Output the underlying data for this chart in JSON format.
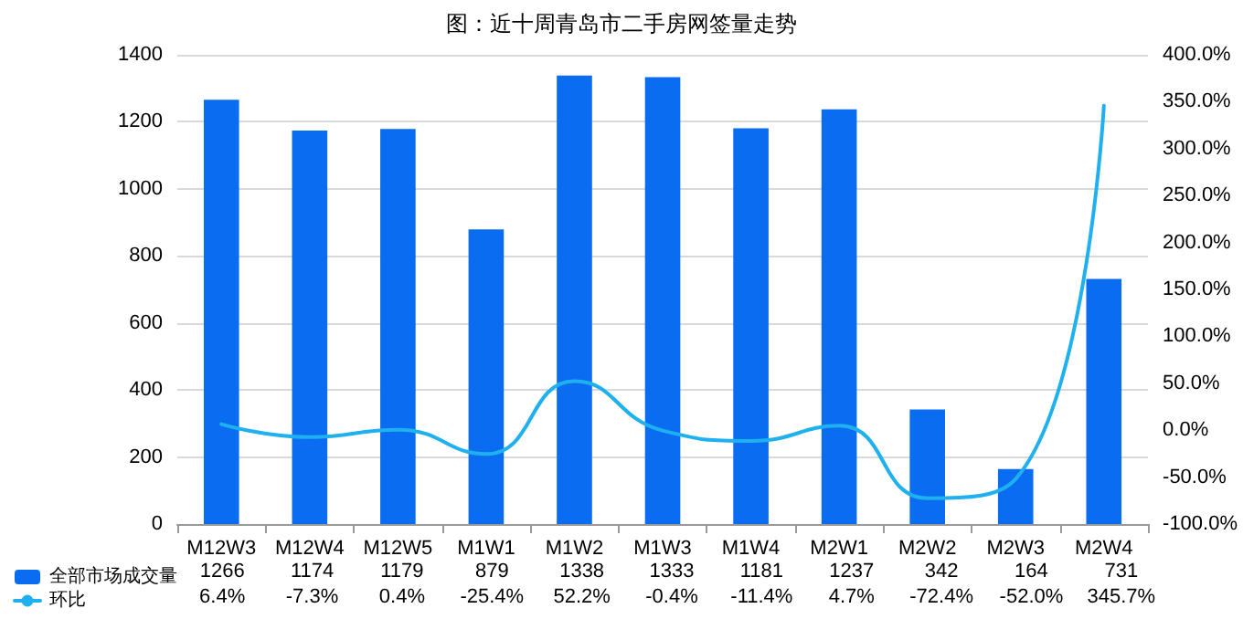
{
  "chart_data": {
    "type": "bar",
    "title": "图：近十周青岛市二手房网签量走势",
    "categories": [
      "M12W3",
      "M12W4",
      "M12W5",
      "M1W1",
      "M1W2",
      "M1W3",
      "M1W4",
      "M2W1",
      "M2W2",
      "M2W3",
      "M2W4"
    ],
    "series": [
      {
        "name": "全部市场成交量",
        "color": "#0a6cf0",
        "values": [
          1266,
          1174,
          1179,
          879,
          1338,
          1333,
          1181,
          1237,
          342,
          164,
          731
        ],
        "value_labels": [
          "1266",
          "1174",
          "1179",
          "879",
          "1338",
          "1333",
          "1181",
          "1237",
          "342",
          "164",
          "731"
        ]
      },
      {
        "name": "环比",
        "type": "line",
        "axis": "y2",
        "color": "#1fb0f0",
        "values": [
          6.4,
          -7.3,
          0.4,
          -25.4,
          52.2,
          -0.4,
          -11.4,
          4.7,
          -72.4,
          -52.0,
          345.7
        ],
        "value_labels": [
          "6.4%",
          "-7.3%",
          "0.4%",
          "-25.4%",
          "52.2%",
          "-0.4%",
          "-11.4%",
          "4.7%",
          "-72.4%",
          "-52.0%",
          "345.7%"
        ]
      }
    ],
    "ylim": [
      0,
      1400
    ],
    "yticks": [
      0,
      200,
      400,
      600,
      800,
      1000,
      1200,
      1400
    ],
    "y2lim": [
      -100,
      400
    ],
    "y2ticks": [
      {
        "value": -100,
        "label": "-100.0%"
      },
      {
        "value": -50,
        "label": "-50.0%"
      },
      {
        "value": 0,
        "label": "0.0%"
      },
      {
        "value": 50,
        "label": "50.0%"
      },
      {
        "value": 100,
        "label": "100.0%"
      },
      {
        "value": 150,
        "label": "150.0%"
      },
      {
        "value": 200,
        "label": "200.0%"
      },
      {
        "value": 250,
        "label": "250.0%"
      },
      {
        "value": 300,
        "label": "300.0%"
      },
      {
        "value": 350,
        "label": "350.0%"
      },
      {
        "value": 400,
        "label": "400.0%"
      }
    ],
    "grid": "y",
    "legend": "bottom left",
    "marker": "none",
    "line_style": "solid"
  }
}
